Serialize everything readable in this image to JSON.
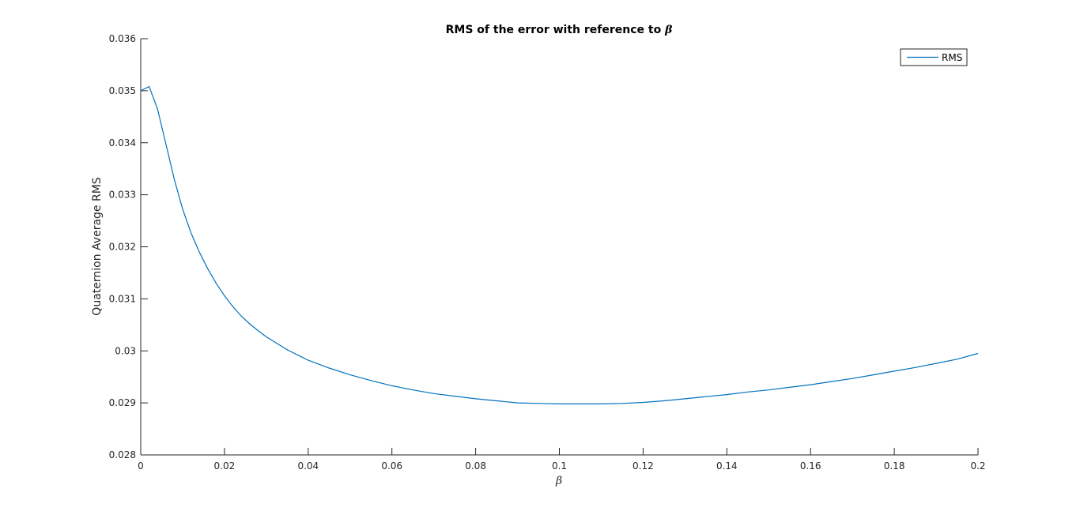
{
  "chart_data": {
    "type": "line",
    "title": "RMS of the error with reference to ",
    "title_symbol": "β",
    "xlabel": "β",
    "ylabel": "Quaternion Average RMS",
    "xlim": [
      0,
      0.2
    ],
    "ylim": [
      0.028,
      0.036
    ],
    "xticks": [
      0,
      0.02,
      0.04,
      0.06,
      0.08,
      0.1,
      0.12,
      0.14,
      0.16,
      0.18,
      0.2
    ],
    "xtick_labels": [
      "0",
      "0.02",
      "0.04",
      "0.06",
      "0.08",
      "0.1",
      "0.12",
      "0.14",
      "0.16",
      "0.18",
      "0.2"
    ],
    "yticks": [
      0.028,
      0.029,
      0.03,
      0.031,
      0.032,
      0.033,
      0.034,
      0.035,
      0.036
    ],
    "ytick_labels": [
      "0.028",
      "0.029",
      "0.03",
      "0.031",
      "0.032",
      "0.033",
      "0.034",
      "0.035",
      "0.036"
    ],
    "grid": false,
    "legend_position": "top-right",
    "series": [
      {
        "name": "RMS",
        "color": "#0072BD",
        "x": [
          0,
          0.002,
          0.004,
          0.006,
          0.008,
          0.01,
          0.012,
          0.014,
          0.016,
          0.018,
          0.02,
          0.022,
          0.024,
          0.026,
          0.028,
          0.03,
          0.035,
          0.04,
          0.045,
          0.05,
          0.055,
          0.06,
          0.065,
          0.07,
          0.075,
          0.08,
          0.085,
          0.09,
          0.095,
          0.1,
          0.105,
          0.11,
          0.115,
          0.12,
          0.125,
          0.13,
          0.135,
          0.14,
          0.145,
          0.15,
          0.155,
          0.16,
          0.165,
          0.17,
          0.175,
          0.18,
          0.185,
          0.19,
          0.195,
          0.2
        ],
        "y": [
          0.035,
          0.03508,
          0.03465,
          0.03398,
          0.0333,
          0.03273,
          0.03227,
          0.0319,
          0.03158,
          0.0313,
          0.03106,
          0.03085,
          0.03067,
          0.03052,
          0.03039,
          0.03027,
          0.03002,
          0.02982,
          0.02967,
          0.02954,
          0.02943,
          0.02933,
          0.02925,
          0.02918,
          0.02913,
          0.02908,
          0.02904,
          0.029,
          0.02899,
          0.02898,
          0.02898,
          0.02898,
          0.02899,
          0.02901,
          0.02904,
          0.02908,
          0.02912,
          0.02916,
          0.02921,
          0.02925,
          0.0293,
          0.02935,
          0.02941,
          0.02947,
          0.02954,
          0.02961,
          0.02968,
          0.02976,
          0.02984,
          0.02995
        ]
      }
    ]
  }
}
